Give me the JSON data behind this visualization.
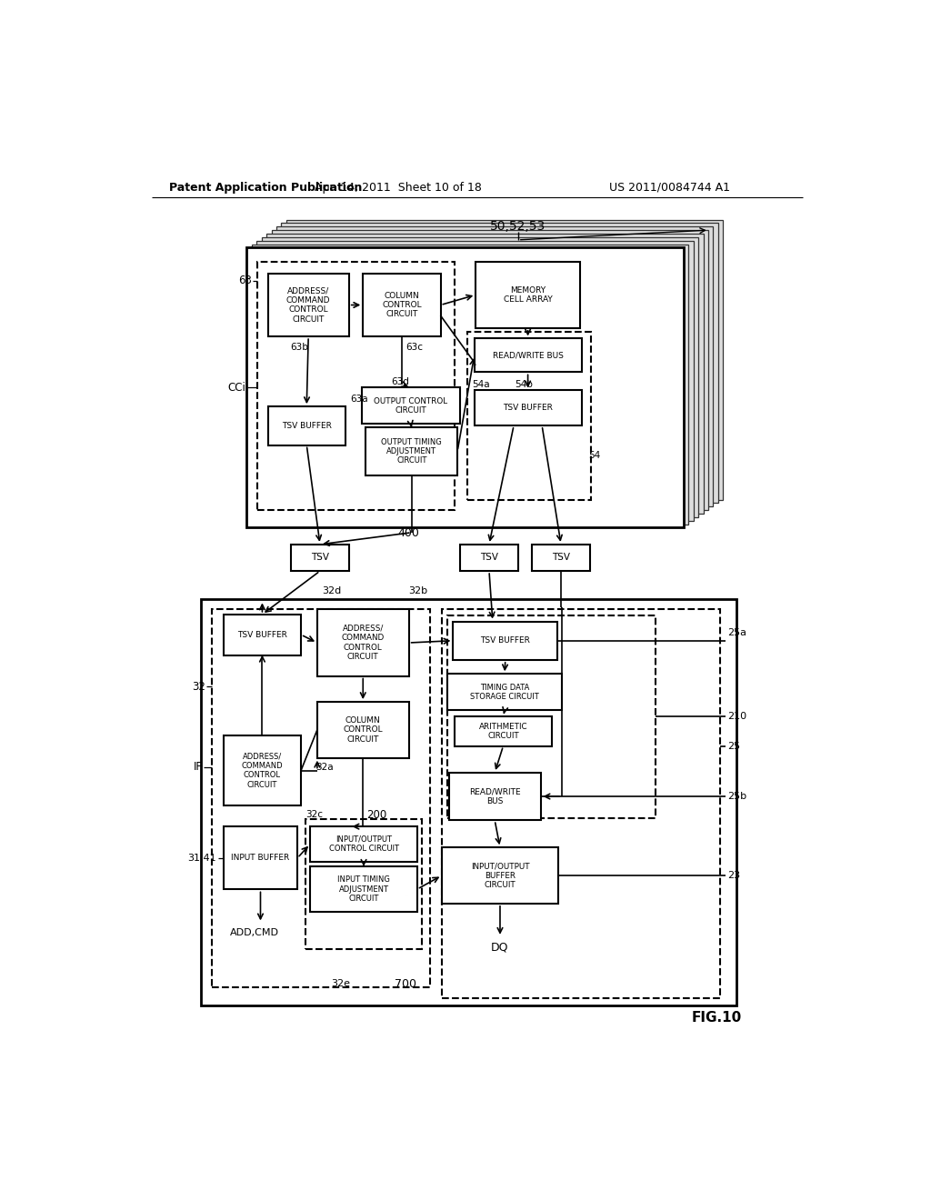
{
  "bg_color": "#ffffff",
  "header_left": "Patent Application Publication",
  "header_mid": "Apr. 14, 2011  Sheet 10 of 18",
  "header_right": "US 2011/0084744 A1",
  "figure_label": "FIG.10"
}
